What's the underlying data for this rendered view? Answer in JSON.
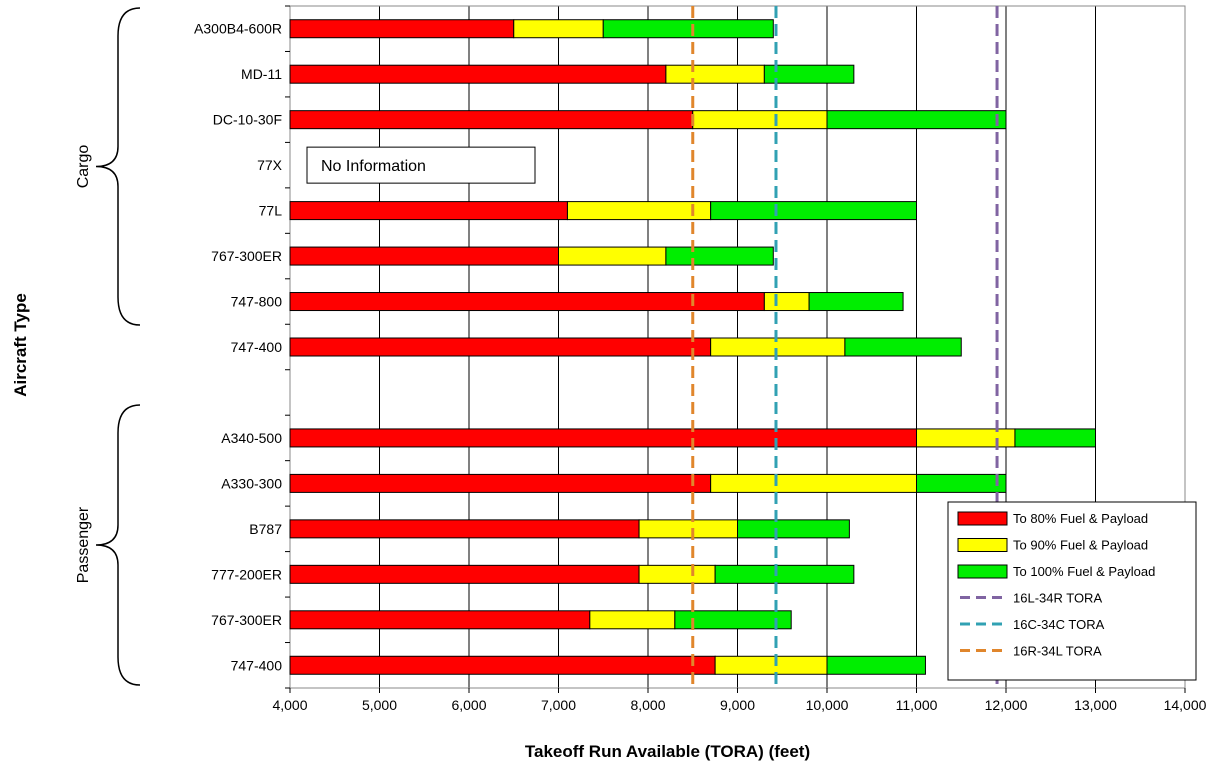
{
  "chart_data": {
    "type": "bar",
    "orientation": "horizontal",
    "stacked": true,
    "xlabel": "Takeoff Run Available (TORA) (feet)",
    "ylabel": "Aircraft Type",
    "xlim": [
      4000,
      14000
    ],
    "x_ticks": [
      "4,000",
      "5,000",
      "6,000",
      "7,000",
      "8,000",
      "9,000",
      "10,000",
      "11,000",
      "12,000",
      "13,000",
      "14,000"
    ],
    "grid": "vertical",
    "legend_position": "bottom-right",
    "groups": [
      {
        "name": "Cargo"
      },
      {
        "name": "Passenger"
      }
    ],
    "categories": [
      {
        "label": "A300B4-600R",
        "group": "Cargo",
        "v80": 6500,
        "v90": 7500,
        "v100": 9400
      },
      {
        "label": "MD-11",
        "group": "Cargo",
        "v80": 8200,
        "v90": 9300,
        "v100": 10300
      },
      {
        "label": "DC-10-30F",
        "group": "Cargo",
        "v80": 8500,
        "v90": 10000,
        "v100": 12000
      },
      {
        "label": "77X",
        "group": "Cargo",
        "v80": null,
        "v90": null,
        "v100": null,
        "note": "No Information"
      },
      {
        "label": "77L",
        "group": "Cargo",
        "v80": 7100,
        "v90": 8700,
        "v100": 11000
      },
      {
        "label": "767-300ER",
        "group": "Cargo",
        "v80": 7000,
        "v90": 8200,
        "v100": 9400
      },
      {
        "label": "747-800",
        "group": "Cargo",
        "v80": 9300,
        "v90": 9800,
        "v100": 10850
      },
      {
        "label": "747-400",
        "group": "Cargo",
        "v80": 8700,
        "v90": 10200,
        "v100": 11500
      },
      {
        "label": "",
        "group": "",
        "v80": null,
        "v90": null,
        "v100": null
      },
      {
        "label": "A340-500",
        "group": "Passenger",
        "v80": 11000,
        "v90": 12100,
        "v100": 13000
      },
      {
        "label": "A330-300",
        "group": "Passenger",
        "v80": 8700,
        "v90": 11000,
        "v100": 12000
      },
      {
        "label": "B787",
        "group": "Passenger",
        "v80": 7900,
        "v90": 9000,
        "v100": 10250
      },
      {
        "label": "777-200ER",
        "group": "Passenger",
        "v80": 7900,
        "v90": 8750,
        "v100": 10300
      },
      {
        "label": "767-300ER",
        "group": "Passenger",
        "v80": 7350,
        "v90": 8300,
        "v100": 9600
      },
      {
        "label": "747-400",
        "group": "Passenger",
        "v80": 8750,
        "v90": 10000,
        "v100": 11100
      }
    ],
    "series": [
      {
        "name": "To 80% Fuel & Payload",
        "key": "v80",
        "color": "#ff0000"
      },
      {
        "name": "To 90% Fuel & Payload",
        "key": "v90",
        "color": "#ffff00"
      },
      {
        "name": "To 100% Fuel & Payload",
        "key": "v100",
        "color": "#00ee00"
      }
    ],
    "reference_lines": [
      {
        "name": "16L-34R TORA",
        "value": 11900,
        "color": "#8064a2"
      },
      {
        "name": "16C-34C TORA",
        "value": 9430,
        "color": "#31a1b3"
      },
      {
        "name": "16R-34L TORA",
        "value": 8500,
        "color": "#e0862c"
      }
    ]
  }
}
